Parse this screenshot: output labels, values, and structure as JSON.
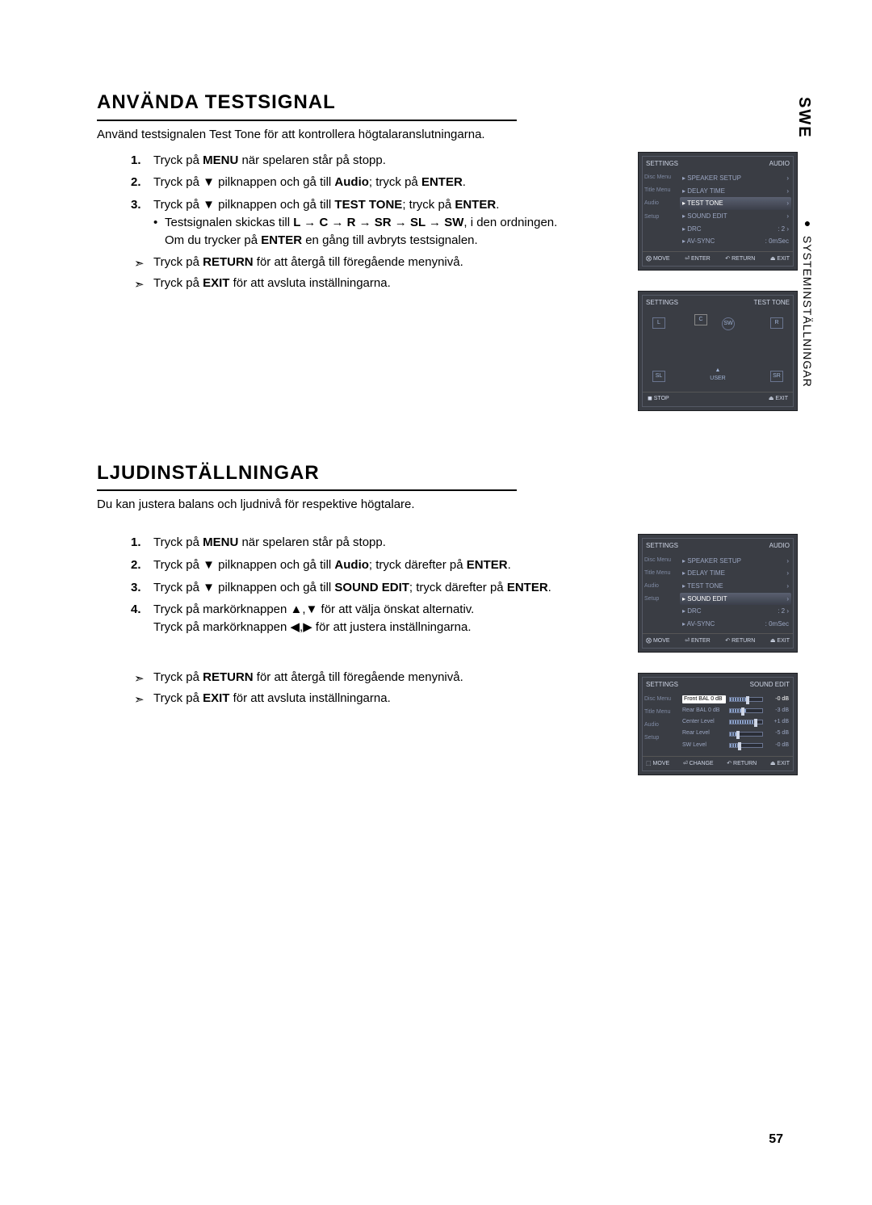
{
  "lang_tab": "SWE",
  "chapter_tab": "SYSTEMINSTÄLLNINGAR",
  "page_number": "57",
  "s1": {
    "title": "ANVÄNDA TESTSIGNAL",
    "intro": "Använd testsignalen Test Tone för att kontrollera högtalaranslutningarna.",
    "steps": [
      {
        "n": "1.",
        "pre": "Tryck på ",
        "b1": "MENU",
        "post": " när spelaren står på stopp."
      },
      {
        "n": "2.",
        "pre": "Tryck på ▼ pilknappen och gå till ",
        "b1": "Audio",
        "mid": "; tryck på ",
        "b2": "ENTER",
        "post": "."
      },
      {
        "n": "3.",
        "pre": "Tryck på ▼ pilknappen och gå till ",
        "b1": "TEST TONE",
        "mid": "; tryck på ",
        "b2": "ENTER",
        "post": "."
      }
    ],
    "bullet_pre": "Testsignalen skickas till ",
    "bullet_seq": "L → C → R → SR → SL → SW",
    "bullet_post": ", i den ordningen.",
    "bullet_line2_pre": "Om du trycker på ",
    "bullet_line2_b": "ENTER",
    "bullet_line2_post": " en gång till avbryts testsignalen.",
    "note1_pre": "Tryck på ",
    "note1_b": "RETURN",
    "note1_post": " för att återgå till föregående menynivå.",
    "note2_pre": "Tryck på ",
    "note2_b": "EXIT",
    "note2_post": " för att avsluta inställningarna."
  },
  "s2": {
    "title": "LJUDINSTÄLLNINGAR",
    "intro": "Du kan justera balans och ljudnivå för respektive högtalare.",
    "steps": [
      {
        "n": "1.",
        "pre": "Tryck på ",
        "b1": "MENU",
        "post": " när spelaren står på stopp."
      },
      {
        "n": "2.",
        "pre": "Tryck på ▼ pilknappen och gå till ",
        "b1": "Audio",
        "mid": "; tryck därefter på ",
        "b2": "ENTER",
        "post": "."
      },
      {
        "n": "3.",
        "pre": "Tryck på ▼ pilknappen och gå till ",
        "b1": "SOUND EDIT",
        "mid": "; tryck därefter på ",
        "b2": "ENTER",
        "post": "."
      },
      {
        "n": "4.",
        "pre": "Tryck på markörknappen ▲,▼ för att välja önskat alternativ.\nTryck på markörknappen ◀,▶ för att justera inställningarna."
      }
    ],
    "note1_pre": "Tryck på ",
    "note1_b": "RETURN",
    "note1_post": " för att återgå till föregående menynivå.",
    "note2_pre": "Tryck på ",
    "note2_b": "EXIT",
    "note2_post": " för att avsluta inställningarna."
  },
  "osd_audio": {
    "header_left": "SETTINGS",
    "header_right": "AUDIO",
    "sidebar": [
      "Disc Menu",
      "Title Menu",
      "Audio",
      "Setup"
    ],
    "rows": [
      {
        "label": "SPEAKER SETUP",
        "sel": false,
        "val": "",
        "chev": "›"
      },
      {
        "label": "DELAY TIME",
        "sel": false,
        "val": "",
        "chev": "›"
      },
      {
        "label": "TEST TONE",
        "sel": true,
        "val": "",
        "chev": "›"
      },
      {
        "label": "SOUND EDIT",
        "sel": false,
        "val": "",
        "chev": "›"
      },
      {
        "label": "DRC",
        "sel": false,
        "val": ": 2",
        "chev": "›"
      },
      {
        "label": "AV-SYNC",
        "sel": false,
        "val": ": 0mSec",
        "chev": ""
      }
    ],
    "footer": [
      "⨂ MOVE",
      "⏎ ENTER",
      "↶ RETURN",
      "⏏ EXIT"
    ]
  },
  "osd_audio2": {
    "rows": [
      {
        "label": "SPEAKER SETUP",
        "sel": false,
        "val": "",
        "chev": "›"
      },
      {
        "label": "DELAY TIME",
        "sel": false,
        "val": "",
        "chev": "›"
      },
      {
        "label": "TEST TONE",
        "sel": false,
        "val": "",
        "chev": "›"
      },
      {
        "label": "SOUND EDIT",
        "sel": true,
        "val": "",
        "chev": "›"
      },
      {
        "label": "DRC",
        "sel": false,
        "val": ": 2",
        "chev": "›"
      },
      {
        "label": "AV-SYNC",
        "sel": false,
        "val": ": 0mSec",
        "chev": ""
      }
    ]
  },
  "osd_tt": {
    "header_left": "SETTINGS",
    "header_right": "TEST TONE",
    "labels": {
      "L": "L",
      "C": "C",
      "SW": "SW",
      "R": "R",
      "SL": "SL",
      "USER": "▲\nUSER",
      "SR": "SR"
    },
    "footer": [
      "◼ STOP",
      "⏏ EXIT"
    ]
  },
  "osd_se": {
    "header_left": "SETTINGS",
    "header_right": "SOUND EDIT",
    "rows": [
      {
        "label": "Front BAL",
        "note": "0 dB",
        "fill": 50,
        "knob": 50,
        "val": "-0 dB",
        "sel": true
      },
      {
        "label": "Rear BAL",
        "note": "0 dB",
        "fill": 50,
        "knob": 35,
        "val": "-3 dB",
        "sel": false
      },
      {
        "label": "Center Level",
        "note": "",
        "fill": 75,
        "knob": 75,
        "val": "+1 dB",
        "sel": false
      },
      {
        "label": "Rear Level",
        "note": "",
        "fill": 20,
        "knob": 20,
        "val": "-5 dB",
        "sel": false
      },
      {
        "label": "SW Level",
        "note": "",
        "fill": 25,
        "knob": 25,
        "val": "-0 dB",
        "sel": false
      }
    ],
    "footer": [
      "⬚ MOVE",
      "⏎ CHANGE",
      "↶ RETURN",
      "⏏ EXIT"
    ]
  }
}
